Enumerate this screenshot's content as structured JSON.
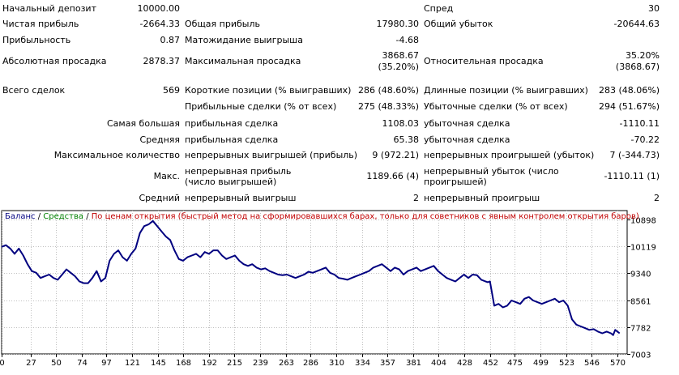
{
  "stats": {
    "initial_deposit": {
      "label": "Начальный депозит",
      "value": "10000.00"
    },
    "spread": {
      "label": "Спред",
      "value": "30"
    },
    "net_profit": {
      "label": "Чистая прибыль",
      "value": "-2664.33"
    },
    "gross_profit": {
      "label": "Общая прибыль",
      "value": "17980.30"
    },
    "gross_loss": {
      "label": "Общий убыток",
      "value": "-20644.63"
    },
    "profit_factor": {
      "label": "Прибыльность",
      "value": "0.87"
    },
    "expected_payoff": {
      "label": "Матожидание выигрыша",
      "value": "-4.68"
    },
    "absolute_drawdown": {
      "label": "Абсолютная просадка",
      "value": "2878.37"
    },
    "maximal_drawdown": {
      "label": "Максимальная просадка",
      "value_line1": "3868.67",
      "value_line2": "(35.20%)"
    },
    "relative_drawdown": {
      "label": "Относительная просадка",
      "value_line1": "35.20%",
      "value_line2": "(3868.67)"
    },
    "total_trades": {
      "label": "Всего сделок",
      "value": "569"
    },
    "short_positions": {
      "label": "Короткие позиции (% выигравших)",
      "value": "286 (48.60%)"
    },
    "long_positions": {
      "label": "Длинные позиции (% выигравших)",
      "value": "283 (48.06%)"
    },
    "profit_trades": {
      "label": "Прибыльные сделки (% от всех)",
      "value": "275 (48.33%)"
    },
    "loss_trades": {
      "label": "Убыточные сделки (% от всех)",
      "value": "294 (51.67%)"
    },
    "largest": {
      "row_label": "Самая большая",
      "profit_label": "прибыльная сделка",
      "profit_value": "1108.03",
      "loss_label": "убыточная сделка",
      "loss_value": "-1110.11"
    },
    "average": {
      "row_label": "Средняя",
      "profit_label": "прибыльная сделка",
      "profit_value": "65.38",
      "loss_label": "убыточная сделка",
      "loss_value": "-70.22"
    },
    "max_consecutive": {
      "row_label": "Максимальное количество",
      "wins_label": "непрерывных выигрышей (прибыль)",
      "wins_value": "9 (972.21)",
      "losses_label": "непрерывных проигрышей (убыток)",
      "losses_value": "7 (-344.73)"
    },
    "max_consecutive_amount": {
      "row_label": "Макс.",
      "profit_label": "непрерывная прибыль (число выигрышей)",
      "profit_value": "1189.66 (4)",
      "loss_label": "непрерывный убыток (число проигрышей)",
      "loss_value": "-1110.11 (1)"
    },
    "average_consecutive": {
      "row_label": "Средний",
      "wins_label": "непрерывный выигрыш",
      "wins_value": "2",
      "losses_label": "непрерывный проигрыш",
      "losses_value": "2"
    }
  },
  "chart_data": {
    "type": "line",
    "legend": {
      "balance": "Баланс",
      "sep1": " / ",
      "equity": "Средства",
      "sep2": " / ",
      "mode": "По ценам открытия (быстрый метод на сформировавшихся барах, только для советников с явным контролем открытия баров)"
    },
    "colors": {
      "balance_line": "#000080",
      "legend_balance": "#000080",
      "legend_equity": "#008000",
      "legend_mode": "#c00000",
      "grid": "#c0c0c0",
      "frame": "#000000"
    },
    "x_ticks": [
      0,
      27,
      50,
      74,
      97,
      121,
      145,
      168,
      192,
      215,
      239,
      263,
      286,
      310,
      334,
      357,
      381,
      404,
      428,
      452,
      475,
      499,
      523,
      546,
      570
    ],
    "y_ticks": [
      10898,
      10119,
      9340,
      8561,
      7782,
      7003
    ],
    "xlim": [
      0,
      579
    ],
    "ylim": [
      7003,
      11150
    ],
    "series": [
      {
        "x": [
          0,
          4,
          8,
          12,
          16,
          20,
          24,
          28,
          32,
          36,
          40,
          44,
          48,
          52,
          56,
          60,
          64,
          68,
          72,
          76,
          80,
          84,
          88,
          92,
          96,
          100,
          104,
          108,
          112,
          116,
          120,
          124,
          128,
          132,
          136,
          140,
          144,
          148,
          152,
          156,
          160,
          164,
          168,
          172,
          176,
          180,
          184,
          188,
          192,
          196,
          200,
          204,
          208,
          212,
          216,
          220,
          224,
          228,
          232,
          236,
          240,
          244,
          248,
          252,
          256,
          260,
          264,
          268,
          272,
          276,
          280,
          284,
          288,
          292,
          296,
          300,
          304,
          308,
          312,
          316,
          320,
          324,
          328,
          332,
          336,
          340,
          344,
          348,
          352,
          356,
          360,
          364,
          368,
          372,
          376,
          380,
          384,
          388,
          392,
          396,
          400,
          404,
          408,
          412,
          416,
          420,
          424,
          428,
          432,
          436,
          440,
          444,
          448,
          450,
          452,
          456,
          460,
          464,
          468,
          472,
          476,
          480,
          484,
          488,
          492,
          496,
          500,
          504,
          508,
          512,
          516,
          520,
          524,
          528,
          532,
          536,
          540,
          544,
          548,
          552,
          556,
          560,
          564,
          566,
          568,
          570,
          572
        ],
        "y": [
          10100,
          10150,
          10050,
          9900,
          10050,
          9850,
          9600,
          9400,
          9350,
          9200,
          9250,
          9300,
          9200,
          9150,
          9300,
          9450,
          9350,
          9250,
          9100,
          9050,
          9050,
          9200,
          9400,
          9100,
          9200,
          9700,
          9900,
          10000,
          9800,
          9700,
          9900,
          10050,
          10500,
          10700,
          10750,
          10850,
          10700,
          10550,
          10400,
          10300,
          10000,
          9750,
          9700,
          9800,
          9850,
          9900,
          9800,
          9950,
          9900,
          10000,
          10000,
          9850,
          9750,
          9800,
          9850,
          9700,
          9600,
          9550,
          9600,
          9500,
          9450,
          9480,
          9400,
          9350,
          9300,
          9280,
          9300,
          9250,
          9200,
          9250,
          9300,
          9380,
          9350,
          9400,
          9450,
          9500,
          9350,
          9300,
          9200,
          9180,
          9150,
          9200,
          9250,
          9300,
          9350,
          9400,
          9500,
          9550,
          9600,
          9500,
          9400,
          9500,
          9450,
          9300,
          9400,
          9450,
          9500,
          9400,
          9450,
          9500,
          9550,
          9400,
          9300,
          9200,
          9150,
          9100,
          9200,
          9300,
          9200,
          9300,
          9280,
          9150,
          9100,
          9080,
          9100,
          8400,
          8450,
          8350,
          8400,
          8550,
          8500,
          8450,
          8600,
          8650,
          8550,
          8500,
          8450,
          8500,
          8550,
          8600,
          8500,
          8550,
          8400,
          8000,
          7850,
          7800,
          7750,
          7700,
          7720,
          7650,
          7600,
          7650,
          7600,
          7550,
          7700,
          7650,
          7600
        ]
      }
    ]
  }
}
